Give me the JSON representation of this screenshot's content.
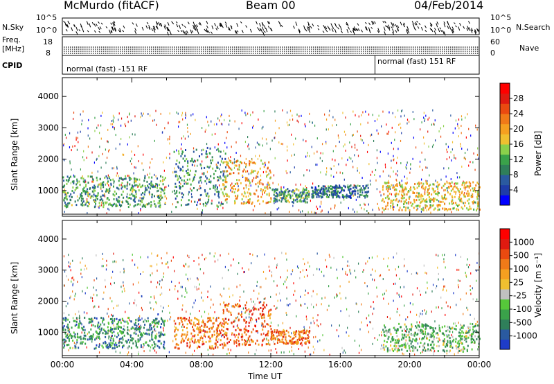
{
  "header": {
    "station": "McMurdo (fitACF)",
    "beam": "Beam 00",
    "date": "04/Feb/2014"
  },
  "status_panels": {
    "nsky_label": "N.Sky",
    "nsky_ticks": [
      "10^5",
      "10^0"
    ],
    "nsearch_label": "N.Search",
    "nsearch_ticks": [
      "10^5",
      "10^0"
    ],
    "freq_label_1": "Freq.",
    "freq_label_2": "[MHz]",
    "freq_ticks": [
      "18",
      "8"
    ],
    "nave_label": "Nave",
    "nave_ticks": [
      "60",
      "0"
    ],
    "cpid_label": "CPID",
    "cpid_segments": [
      {
        "label": "normal (fast) -151 RF",
        "start_hour": 0,
        "end_hour": 18.0
      },
      {
        "label": "normal (fast) 151 RF",
        "start_hour": 18.0,
        "end_hour": 24
      }
    ]
  },
  "chart_data": [
    {
      "type": "heatmap",
      "name": "power",
      "xlabel": "",
      "ylabel": "Slant Range [km]",
      "xlim": [
        0,
        24
      ],
      "ylim": [
        180,
        4600
      ],
      "y_ticks": [
        1000,
        2000,
        3000,
        4000
      ],
      "y_tick_labels": [
        "1000",
        "2000",
        "3000",
        "4000"
      ],
      "colorbar": {
        "label": "Power [dB]",
        "tick_labels": [
          "4",
          "8",
          "12",
          "16",
          "20",
          "24",
          "28"
        ],
        "colors": [
          "#0000ff",
          "#1e3ca8",
          "#2a5aa0",
          "#2f7f5a",
          "#3aa24a",
          "#8bd04b",
          "#f0c030",
          "#f5a020",
          "#f07a18",
          "#ea4a10",
          "#e01a10",
          "#ff0000"
        ]
      },
      "echo_regions": [
        {
          "start_hour": 0.0,
          "end_hour": 5.9,
          "min_km": 500,
          "max_km": 1500,
          "level": 0.35
        },
        {
          "start_hour": 6.4,
          "end_hour": 9.4,
          "min_km": 500,
          "max_km": 2400,
          "level": 0.3
        },
        {
          "start_hour": 9.2,
          "end_hour": 12.0,
          "min_km": 600,
          "max_km": 2000,
          "level": 0.6
        },
        {
          "start_hour": 12.0,
          "end_hour": 14.2,
          "min_km": 650,
          "max_km": 1100,
          "level": 0.35
        },
        {
          "start_hour": 14.3,
          "end_hour": 17.6,
          "min_km": 800,
          "max_km": 1200,
          "level": 0.25
        },
        {
          "start_hour": 18.4,
          "end_hour": 24.0,
          "min_km": 400,
          "max_km": 1300,
          "level": 0.55
        }
      ]
    },
    {
      "type": "heatmap",
      "name": "velocity",
      "xlabel": "Time UT",
      "ylabel": "Slant Range [km]",
      "xlim": [
        0,
        24
      ],
      "ylim": [
        180,
        4600
      ],
      "x_ticks": [
        0,
        4,
        8,
        12,
        16,
        20,
        24
      ],
      "x_tick_labels": [
        "00:00",
        "04:00",
        "08:00",
        "12:00",
        "16:00",
        "20:00",
        "00:00"
      ],
      "y_ticks": [
        1000,
        2000,
        3000,
        4000
      ],
      "y_tick_labels": [
        "1000",
        "2000",
        "3000",
        "4000"
      ],
      "colorbar": {
        "label": "Velocity [m s⁻¹]",
        "tick_labels": [
          "1000",
          "500",
          "100",
          "25",
          "-25",
          "-100",
          "-500",
          "-1000"
        ],
        "colors": [
          "#1e3cc8",
          "#2a5aa0",
          "#2f7f5a",
          "#3aa24a",
          "#56c83a",
          "#c0c0c0",
          "#f0c030",
          "#f5a020",
          "#f07a18",
          "#ea4a10",
          "#e01a10",
          "#ff0000"
        ]
      },
      "echo_regions": [
        {
          "start_hour": 0.0,
          "end_hour": 5.9,
          "min_km": 500,
          "max_km": 1500,
          "level": 0.25
        },
        {
          "start_hour": 6.4,
          "end_hour": 9.4,
          "min_km": 500,
          "max_km": 1500,
          "level": 0.7
        },
        {
          "start_hour": 9.2,
          "end_hour": 12.0,
          "min_km": 600,
          "max_km": 2000,
          "level": 0.75
        },
        {
          "start_hour": 12.0,
          "end_hour": 14.2,
          "min_km": 650,
          "max_km": 1100,
          "level": 0.72
        },
        {
          "start_hour": 18.4,
          "end_hour": 24.0,
          "min_km": 400,
          "max_km": 1300,
          "level": 0.35
        }
      ]
    }
  ]
}
